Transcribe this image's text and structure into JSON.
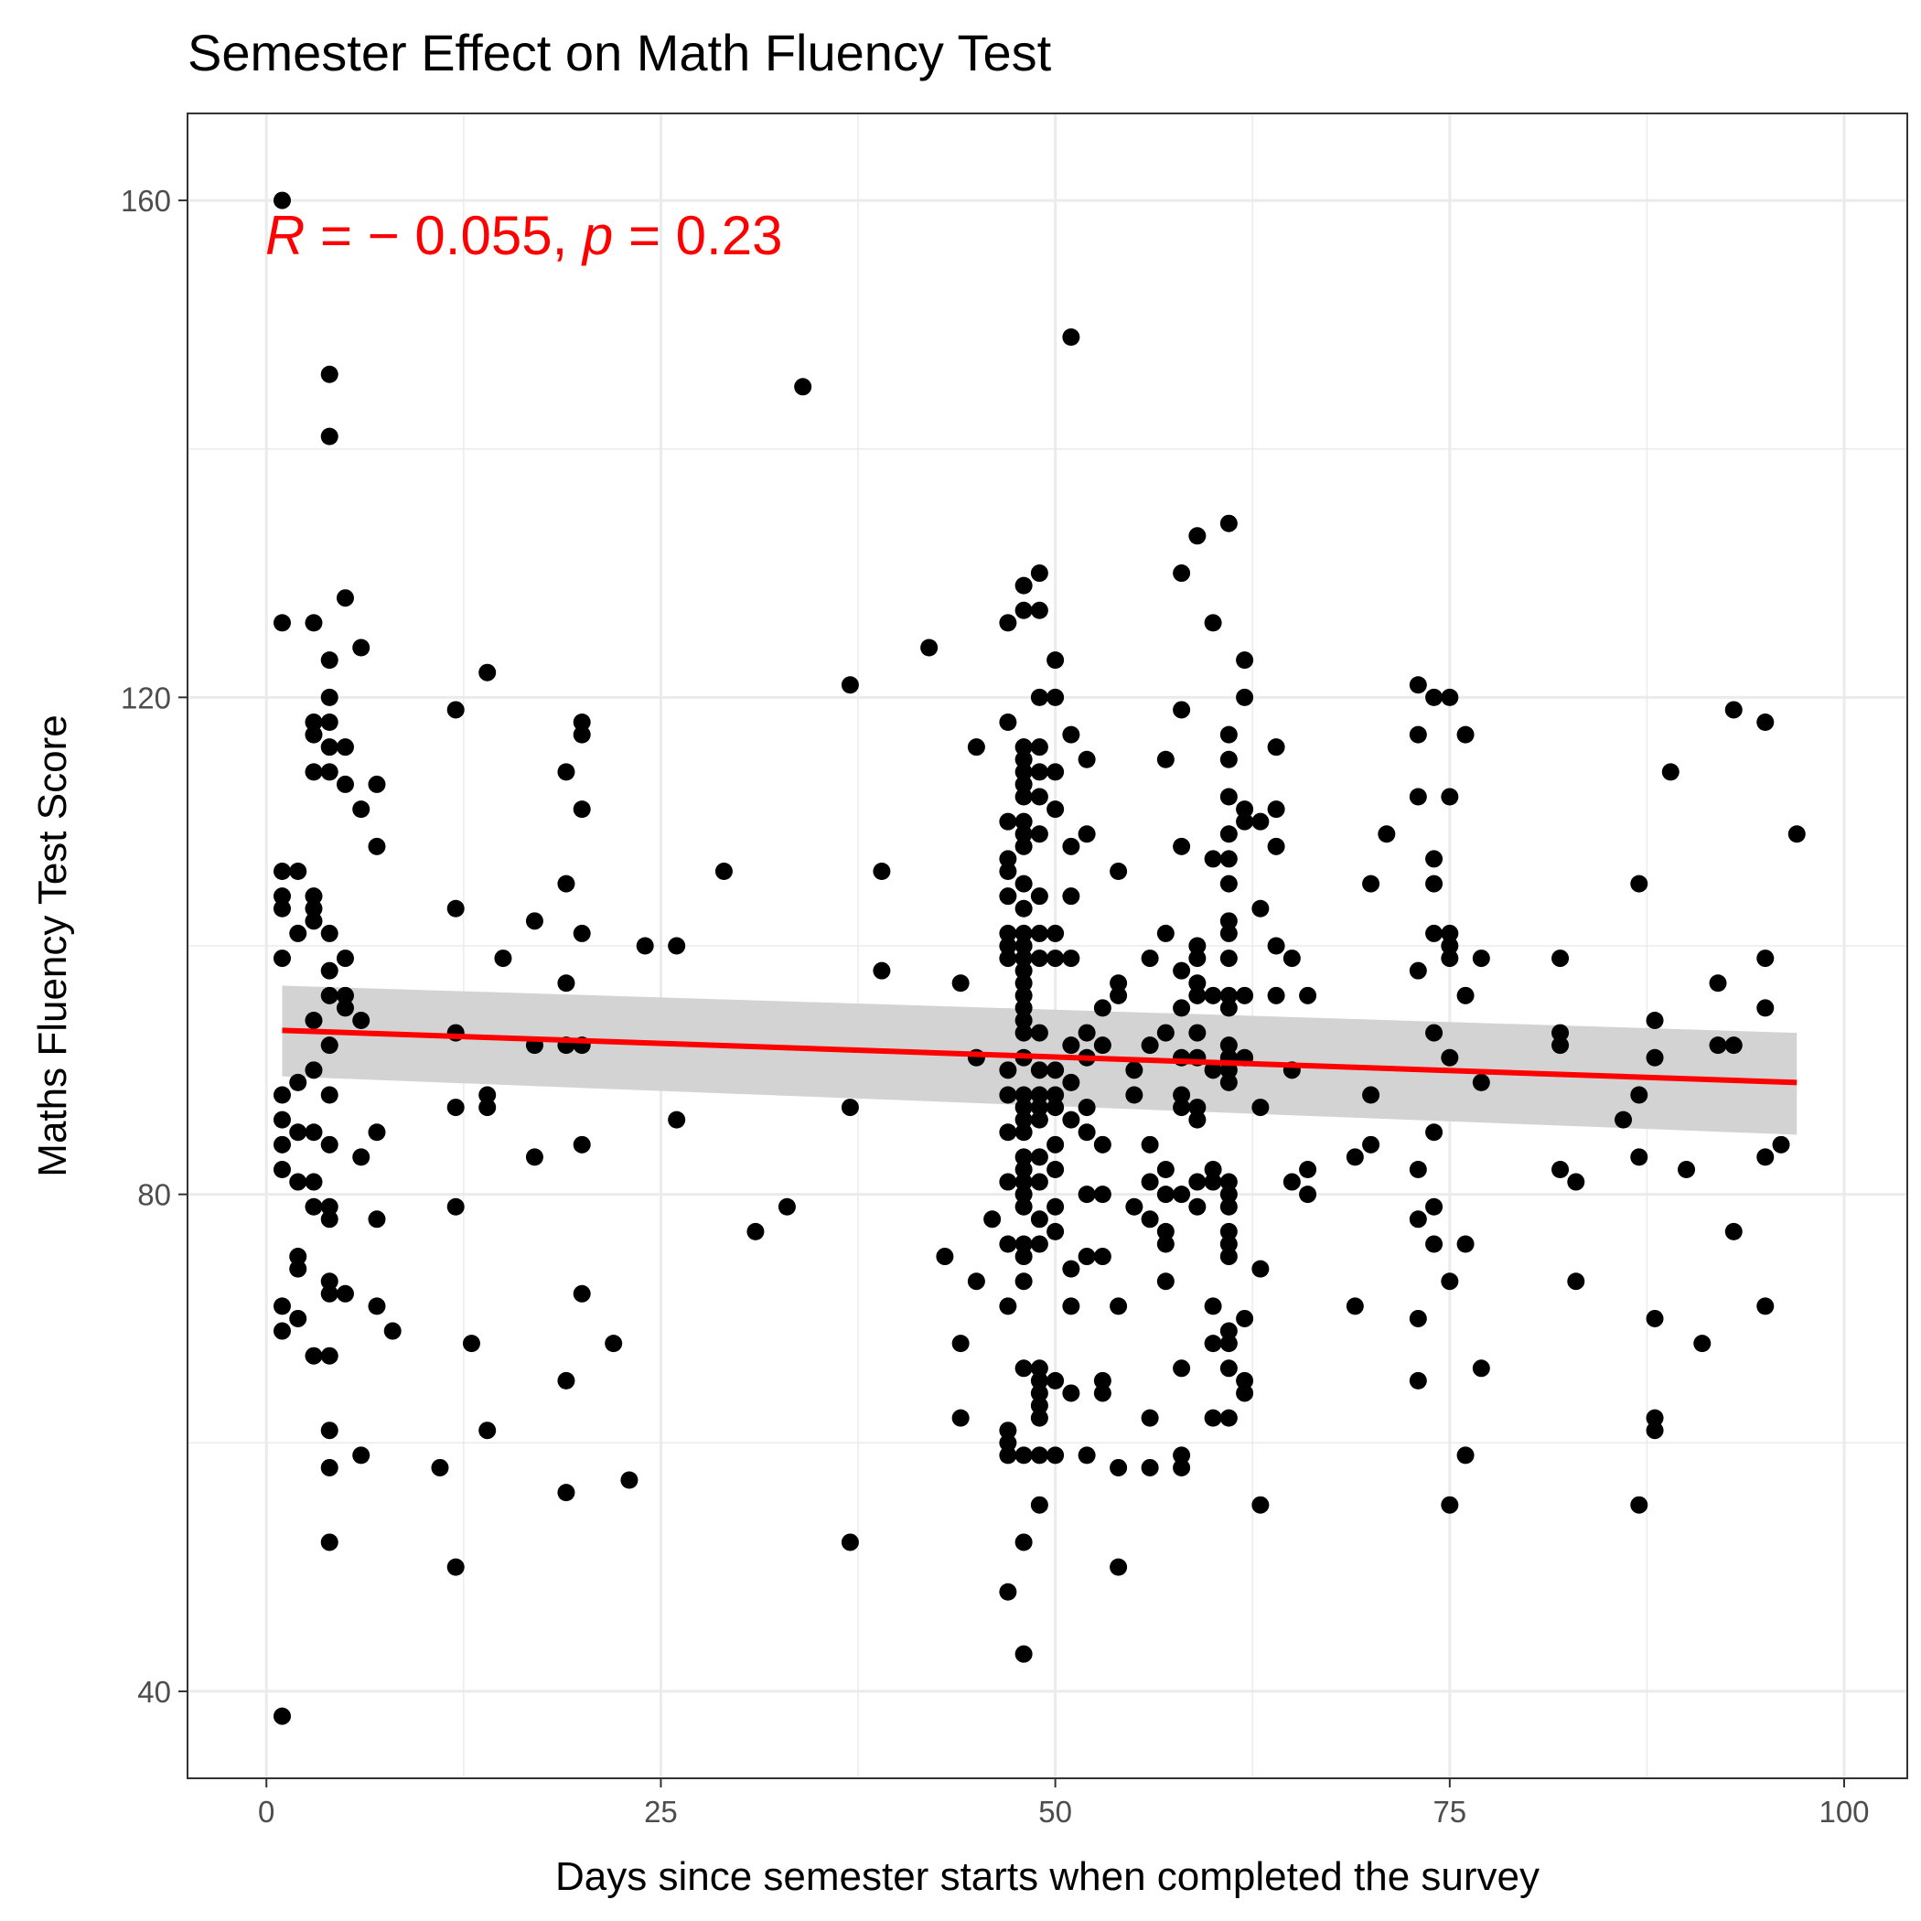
{
  "chart_data": {
    "type": "scatter",
    "title": "Semester Effect on Math Fluency Test",
    "xlabel": "Days since semester starts when completed the survey",
    "ylabel": "Maths Fluency Test Score",
    "xlim": [
      -5,
      104
    ],
    "ylim": [
      33,
      167
    ],
    "x_ticks": [
      0,
      25,
      50,
      75,
      100
    ],
    "y_ticks": [
      40,
      80,
      120,
      160
    ],
    "x_tick_labels": [
      "0",
      "25",
      "50",
      "75",
      "100"
    ],
    "y_tick_labels": [
      "40",
      "80",
      "120",
      "160"
    ],
    "grid": true,
    "annotation": {
      "r_label": "R",
      "r_value": " = − 0.055, ",
      "p_label": "p",
      "p_value": " = 0.23",
      "color": "#FF0000"
    },
    "regression": {
      "x": [
        1,
        97
      ],
      "y": [
        93.2,
        89.0
      ],
      "ci_lower": [
        89.5,
        84.8
      ],
      "ci_upper": [
        96.8,
        93.0
      ],
      "line_color": "#FF0000",
      "band_color": "#D3D3D3"
    },
    "point_color": "#000000",
    "points": [
      [
        1,
        160
      ],
      [
        1,
        126
      ],
      [
        1,
        106
      ],
      [
        1,
        104
      ],
      [
        1,
        103
      ],
      [
        1,
        99
      ],
      [
        1,
        88
      ],
      [
        1,
        86
      ],
      [
        1,
        84
      ],
      [
        1,
        82
      ],
      [
        1,
        71
      ],
      [
        1,
        69
      ],
      [
        1,
        38
      ],
      [
        2,
        106
      ],
      [
        2,
        101
      ],
      [
        2,
        89
      ],
      [
        2,
        85
      ],
      [
        2,
        81
      ],
      [
        2,
        75
      ],
      [
        2,
        74
      ],
      [
        2,
        70
      ],
      [
        3,
        126
      ],
      [
        3,
        118
      ],
      [
        3,
        117
      ],
      [
        3,
        114
      ],
      [
        3,
        104
      ],
      [
        3,
        103
      ],
      [
        3,
        102
      ],
      [
        3,
        94
      ],
      [
        3,
        90
      ],
      [
        3,
        85
      ],
      [
        3,
        81
      ],
      [
        3,
        79
      ],
      [
        3,
        67
      ],
      [
        4,
        146
      ],
      [
        4,
        141
      ],
      [
        4,
        123
      ],
      [
        4,
        120
      ],
      [
        4,
        118
      ],
      [
        4,
        116
      ],
      [
        4,
        114
      ],
      [
        4,
        101
      ],
      [
        4,
        98
      ],
      [
        4,
        96
      ],
      [
        4,
        92
      ],
      [
        4,
        88
      ],
      [
        4,
        84
      ],
      [
        4,
        79
      ],
      [
        4,
        78
      ],
      [
        4,
        73
      ],
      [
        4,
        72
      ],
      [
        4,
        67
      ],
      [
        4,
        61
      ],
      [
        4,
        58
      ],
      [
        4,
        52
      ],
      [
        5,
        128
      ],
      [
        5,
        116
      ],
      [
        5,
        113
      ],
      [
        5,
        99
      ],
      [
        5,
        96
      ],
      [
        5,
        95
      ],
      [
        5,
        72
      ],
      [
        6,
        124
      ],
      [
        6,
        111
      ],
      [
        6,
        94
      ],
      [
        6,
        83
      ],
      [
        6,
        59
      ],
      [
        7,
        113
      ],
      [
        7,
        108
      ],
      [
        7,
        85
      ],
      [
        7,
        78
      ],
      [
        7,
        71
      ],
      [
        8,
        69
      ],
      [
        11,
        58
      ],
      [
        12,
        119
      ],
      [
        12,
        103
      ],
      [
        12,
        93
      ],
      [
        12,
        87
      ],
      [
        12,
        79
      ],
      [
        12,
        50
      ],
      [
        13,
        68
      ],
      [
        14,
        122
      ],
      [
        14,
        88
      ],
      [
        14,
        87
      ],
      [
        14,
        61
      ],
      [
        15,
        99
      ],
      [
        17,
        102
      ],
      [
        17,
        92
      ],
      [
        17,
        83
      ],
      [
        19,
        114
      ],
      [
        19,
        105
      ],
      [
        19,
        97
      ],
      [
        19,
        92
      ],
      [
        19,
        65
      ],
      [
        19,
        56
      ],
      [
        20,
        118
      ],
      [
        20,
        117
      ],
      [
        20,
        111
      ],
      [
        20,
        101
      ],
      [
        20,
        92
      ],
      [
        20,
        84
      ],
      [
        20,
        72
      ],
      [
        22,
        68
      ],
      [
        23,
        57
      ],
      [
        24,
        100
      ],
      [
        26,
        100
      ],
      [
        26,
        86
      ],
      [
        29,
        106
      ],
      [
        31,
        77
      ],
      [
        33,
        79
      ],
      [
        34,
        145
      ],
      [
        37,
        121
      ],
      [
        37,
        87
      ],
      [
        37,
        52
      ],
      [
        39,
        106
      ],
      [
        39,
        98
      ],
      [
        42,
        124
      ],
      [
        43,
        75
      ],
      [
        44,
        97
      ],
      [
        44,
        68
      ],
      [
        44,
        62
      ],
      [
        45,
        116
      ],
      [
        45,
        91
      ],
      [
        45,
        73
      ],
      [
        46,
        78
      ],
      [
        47,
        126
      ],
      [
        47,
        118
      ],
      [
        47,
        110
      ],
      [
        47,
        107
      ],
      [
        47,
        106
      ],
      [
        47,
        104
      ],
      [
        47,
        101
      ],
      [
        47,
        100
      ],
      [
        47,
        99
      ],
      [
        47,
        90
      ],
      [
        47,
        88
      ],
      [
        47,
        85
      ],
      [
        47,
        81
      ],
      [
        47,
        76
      ],
      [
        47,
        71
      ],
      [
        47,
        61
      ],
      [
        47,
        60
      ],
      [
        47,
        59
      ],
      [
        47,
        48
      ],
      [
        48,
        129
      ],
      [
        48,
        127
      ],
      [
        48,
        116
      ],
      [
        48,
        115
      ],
      [
        48,
        114
      ],
      [
        48,
        113
      ],
      [
        48,
        112
      ],
      [
        48,
        110
      ],
      [
        48,
        109
      ],
      [
        48,
        108
      ],
      [
        48,
        105
      ],
      [
        48,
        103
      ],
      [
        48,
        101
      ],
      [
        48,
        100
      ],
      [
        48,
        99
      ],
      [
        48,
        98
      ],
      [
        48,
        97
      ],
      [
        48,
        96
      ],
      [
        48,
        95
      ],
      [
        48,
        94
      ],
      [
        48,
        93
      ],
      [
        48,
        91
      ],
      [
        48,
        88
      ],
      [
        48,
        87
      ],
      [
        48,
        86
      ],
      [
        48,
        85
      ],
      [
        48,
        83
      ],
      [
        48,
        82
      ],
      [
        48,
        81
      ],
      [
        48,
        80
      ],
      [
        48,
        79
      ],
      [
        48,
        76
      ],
      [
        48,
        75
      ],
      [
        48,
        73
      ],
      [
        48,
        66
      ],
      [
        48,
        59
      ],
      [
        48,
        52
      ],
      [
        48,
        43
      ],
      [
        49,
        130
      ],
      [
        49,
        127
      ],
      [
        49,
        120
      ],
      [
        49,
        116
      ],
      [
        49,
        114
      ],
      [
        49,
        112
      ],
      [
        49,
        109
      ],
      [
        49,
        104
      ],
      [
        49,
        101
      ],
      [
        49,
        99
      ],
      [
        49,
        93
      ],
      [
        49,
        90
      ],
      [
        49,
        88
      ],
      [
        49,
        87
      ],
      [
        49,
        86
      ],
      [
        49,
        83
      ],
      [
        49,
        81
      ],
      [
        49,
        78
      ],
      [
        49,
        76
      ],
      [
        49,
        66
      ],
      [
        49,
        65
      ],
      [
        49,
        64
      ],
      [
        49,
        63
      ],
      [
        49,
        62
      ],
      [
        49,
        59
      ],
      [
        49,
        55
      ],
      [
        50,
        123
      ],
      [
        50,
        120
      ],
      [
        50,
        114
      ],
      [
        50,
        111
      ],
      [
        50,
        101
      ],
      [
        50,
        99
      ],
      [
        50,
        90
      ],
      [
        50,
        88
      ],
      [
        50,
        87
      ],
      [
        50,
        84
      ],
      [
        50,
        82
      ],
      [
        50,
        79
      ],
      [
        50,
        77
      ],
      [
        50,
        65
      ],
      [
        50,
        59
      ],
      [
        51,
        149
      ],
      [
        51,
        117
      ],
      [
        51,
        108
      ],
      [
        51,
        104
      ],
      [
        51,
        99
      ],
      [
        51,
        92
      ],
      [
        51,
        89
      ],
      [
        51,
        86
      ],
      [
        51,
        74
      ],
      [
        51,
        71
      ],
      [
        51,
        64
      ],
      [
        52,
        115
      ],
      [
        52,
        109
      ],
      [
        52,
        93
      ],
      [
        52,
        91
      ],
      [
        52,
        87
      ],
      [
        52,
        85
      ],
      [
        52,
        80
      ],
      [
        52,
        75
      ],
      [
        52,
        59
      ],
      [
        53,
        95
      ],
      [
        53,
        92
      ],
      [
        53,
        84
      ],
      [
        53,
        80
      ],
      [
        53,
        75
      ],
      [
        53,
        65
      ],
      [
        53,
        64
      ],
      [
        54,
        106
      ],
      [
        54,
        97
      ],
      [
        54,
        96
      ],
      [
        54,
        71
      ],
      [
        54,
        58
      ],
      [
        54,
        50
      ],
      [
        55,
        90
      ],
      [
        55,
        88
      ],
      [
        55,
        79
      ],
      [
        56,
        99
      ],
      [
        56,
        92
      ],
      [
        56,
        84
      ],
      [
        56,
        81
      ],
      [
        56,
        78
      ],
      [
        56,
        62
      ],
      [
        56,
        58
      ],
      [
        57,
        115
      ],
      [
        57,
        101
      ],
      [
        57,
        93
      ],
      [
        57,
        82
      ],
      [
        57,
        80
      ],
      [
        57,
        77
      ],
      [
        57,
        76
      ],
      [
        57,
        73
      ],
      [
        58,
        130
      ],
      [
        58,
        119
      ],
      [
        58,
        108
      ],
      [
        58,
        98
      ],
      [
        58,
        95
      ],
      [
        58,
        91
      ],
      [
        58,
        88
      ],
      [
        58,
        87
      ],
      [
        58,
        80
      ],
      [
        58,
        66
      ],
      [
        58,
        59
      ],
      [
        58,
        58
      ],
      [
        59,
        133
      ],
      [
        59,
        100
      ],
      [
        59,
        99
      ],
      [
        59,
        97
      ],
      [
        59,
        96
      ],
      [
        59,
        93
      ],
      [
        59,
        91
      ],
      [
        59,
        87
      ],
      [
        59,
        86
      ],
      [
        59,
        81
      ],
      [
        59,
        79
      ],
      [
        60,
        126
      ],
      [
        60,
        107
      ],
      [
        60,
        96
      ],
      [
        60,
        90
      ],
      [
        60,
        82
      ],
      [
        60,
        81
      ],
      [
        60,
        71
      ],
      [
        60,
        68
      ],
      [
        60,
        62
      ],
      [
        61,
        134
      ],
      [
        61,
        117
      ],
      [
        61,
        115
      ],
      [
        61,
        112
      ],
      [
        61,
        109
      ],
      [
        61,
        107
      ],
      [
        61,
        105
      ],
      [
        61,
        102
      ],
      [
        61,
        101
      ],
      [
        61,
        99
      ],
      [
        61,
        96
      ],
      [
        61,
        95
      ],
      [
        61,
        92
      ],
      [
        61,
        91
      ],
      [
        61,
        90
      ],
      [
        61,
        89
      ],
      [
        61,
        81
      ],
      [
        61,
        80
      ],
      [
        61,
        79
      ],
      [
        61,
        77
      ],
      [
        61,
        76
      ],
      [
        61,
        75
      ],
      [
        61,
        69
      ],
      [
        61,
        68
      ],
      [
        61,
        66
      ],
      [
        61,
        62
      ],
      [
        62,
        123
      ],
      [
        62,
        120
      ],
      [
        62,
        111
      ],
      [
        62,
        110
      ],
      [
        62,
        96
      ],
      [
        62,
        91
      ],
      [
        62,
        70
      ],
      [
        62,
        65
      ],
      [
        62,
        64
      ],
      [
        63,
        110
      ],
      [
        63,
        103
      ],
      [
        63,
        87
      ],
      [
        63,
        74
      ],
      [
        63,
        55
      ],
      [
        64,
        116
      ],
      [
        64,
        111
      ],
      [
        64,
        108
      ],
      [
        64,
        100
      ],
      [
        64,
        96
      ],
      [
        65,
        99
      ],
      [
        65,
        90
      ],
      [
        65,
        81
      ],
      [
        66,
        96
      ],
      [
        66,
        82
      ],
      [
        66,
        80
      ],
      [
        69,
        83
      ],
      [
        69,
        71
      ],
      [
        70,
        105
      ],
      [
        70,
        88
      ],
      [
        70,
        84
      ],
      [
        71,
        109
      ],
      [
        73,
        121
      ],
      [
        73,
        117
      ],
      [
        73,
        112
      ],
      [
        73,
        98
      ],
      [
        73,
        82
      ],
      [
        73,
        78
      ],
      [
        73,
        70
      ],
      [
        73,
        65
      ],
      [
        74,
        120
      ],
      [
        74,
        107
      ],
      [
        74,
        105
      ],
      [
        74,
        101
      ],
      [
        74,
        93
      ],
      [
        74,
        85
      ],
      [
        74,
        79
      ],
      [
        74,
        76
      ],
      [
        75,
        120
      ],
      [
        75,
        112
      ],
      [
        75,
        101
      ],
      [
        75,
        100
      ],
      [
        75,
        99
      ],
      [
        75,
        91
      ],
      [
        75,
        73
      ],
      [
        75,
        55
      ],
      [
        76,
        117
      ],
      [
        76,
        96
      ],
      [
        76,
        76
      ],
      [
        76,
        59
      ],
      [
        77,
        99
      ],
      [
        77,
        89
      ],
      [
        77,
        66
      ],
      [
        82,
        99
      ],
      [
        82,
        93
      ],
      [
        82,
        92
      ],
      [
        82,
        82
      ],
      [
        83,
        81
      ],
      [
        83,
        73
      ],
      [
        86,
        86
      ],
      [
        87,
        105
      ],
      [
        87,
        88
      ],
      [
        87,
        83
      ],
      [
        87,
        55
      ],
      [
        88,
        94
      ],
      [
        88,
        91
      ],
      [
        88,
        70
      ],
      [
        88,
        62
      ],
      [
        88,
        61
      ],
      [
        89,
        114
      ],
      [
        90,
        82
      ],
      [
        91,
        68
      ],
      [
        92,
        97
      ],
      [
        92,
        92
      ],
      [
        93,
        119
      ],
      [
        93,
        92
      ],
      [
        93,
        77
      ],
      [
        95,
        118
      ],
      [
        95,
        99
      ],
      [
        95,
        95
      ],
      [
        95,
        83
      ],
      [
        95,
        71
      ],
      [
        96,
        84
      ],
      [
        97,
        109
      ]
    ]
  }
}
